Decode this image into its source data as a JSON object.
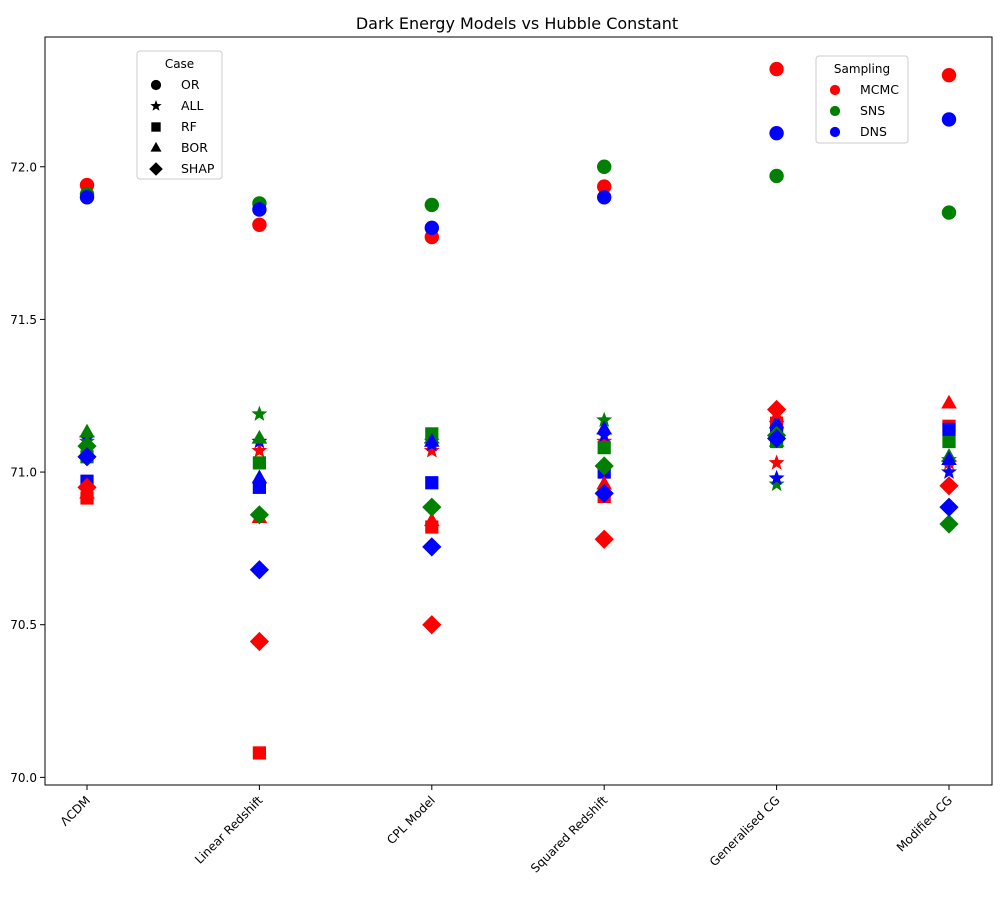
{
  "chart_data": {
    "type": "scatter",
    "title": "Dark Energy Models vs Hubble Constant",
    "xlabel": "",
    "ylabel": "",
    "categories": [
      "ΛCDM",
      "Linear Redshift",
      "CPL Model",
      "Squared Redshift",
      "Generalised CG",
      "Modified CG"
    ],
    "ylim": [
      69.975,
      72.425
    ],
    "yticks": [
      "70.0",
      "70.5",
      "71.0",
      "71.5",
      "72.0"
    ],
    "grid": false,
    "case_legend": {
      "title": "Case",
      "placement": "top-left",
      "entries": [
        {
          "label": "OR",
          "marker": "circle"
        },
        {
          "label": "ALL",
          "marker": "star"
        },
        {
          "label": "RF",
          "marker": "square"
        },
        {
          "label": "BOR",
          "marker": "triangle"
        },
        {
          "label": "SHAP",
          "marker": "diamond"
        }
      ]
    },
    "sampling_legend": {
      "title": "Sampling",
      "placement": "top-right",
      "entries": [
        {
          "label": "MCMC",
          "color": "#ff0000"
        },
        {
          "label": "SNS",
          "color": "#008000"
        },
        {
          "label": "DNS",
          "color": "#0000ff"
        }
      ]
    },
    "series": [
      {
        "sampling": "MCMC",
        "case": "OR",
        "values": [
          71.94,
          71.81,
          71.77,
          71.935,
          72.32,
          72.3
        ]
      },
      {
        "sampling": "SNS",
        "case": "OR",
        "values": [
          71.91,
          71.88,
          71.875,
          72.0,
          71.97,
          71.85
        ]
      },
      {
        "sampling": "DNS",
        "case": "OR",
        "values": [
          71.9,
          71.86,
          71.8,
          71.9,
          72.11,
          72.155
        ]
      },
      {
        "sampling": "MCMC",
        "case": "ALL",
        "values": [
          70.94,
          71.07,
          71.07,
          71.1,
          71.03,
          71.03
        ]
      },
      {
        "sampling": "SNS",
        "case": "ALL",
        "values": [
          71.1,
          71.19,
          71.1,
          71.17,
          70.96,
          71.04
        ]
      },
      {
        "sampling": "DNS",
        "case": "ALL",
        "values": [
          71.11,
          71.1,
          71.09,
          71.12,
          70.98,
          71.0
        ]
      },
      {
        "sampling": "MCMC",
        "case": "RF",
        "values": [
          70.915,
          70.08,
          70.82,
          70.92,
          71.16,
          71.15
        ]
      },
      {
        "sampling": "SNS",
        "case": "RF",
        "values": [
          71.05,
          71.03,
          71.125,
          71.08,
          71.1,
          71.1
        ]
      },
      {
        "sampling": "DNS",
        "case": "RF",
        "values": [
          70.97,
          70.95,
          70.965,
          71.0,
          71.13,
          71.14
        ]
      },
      {
        "sampling": "MCMC",
        "case": "BOR",
        "values": [
          70.93,
          70.85,
          70.84,
          70.96,
          71.18,
          71.225
        ]
      },
      {
        "sampling": "SNS",
        "case": "BOR",
        "values": [
          71.13,
          71.11,
          71.11,
          71.14,
          71.1,
          71.05
        ]
      },
      {
        "sampling": "DNS",
        "case": "BOR",
        "values": [
          71.06,
          70.98,
          71.1,
          71.14,
          71.16,
          71.04
        ]
      },
      {
        "sampling": "MCMC",
        "case": "SHAP",
        "values": [
          70.95,
          70.445,
          70.5,
          70.78,
          71.205,
          70.955
        ]
      },
      {
        "sampling": "SNS",
        "case": "SHAP",
        "values": [
          71.085,
          70.86,
          70.885,
          71.02,
          71.12,
          70.83
        ]
      },
      {
        "sampling": "DNS",
        "case": "SHAP",
        "values": [
          71.05,
          70.68,
          70.755,
          70.93,
          71.11,
          70.885
        ]
      }
    ]
  }
}
